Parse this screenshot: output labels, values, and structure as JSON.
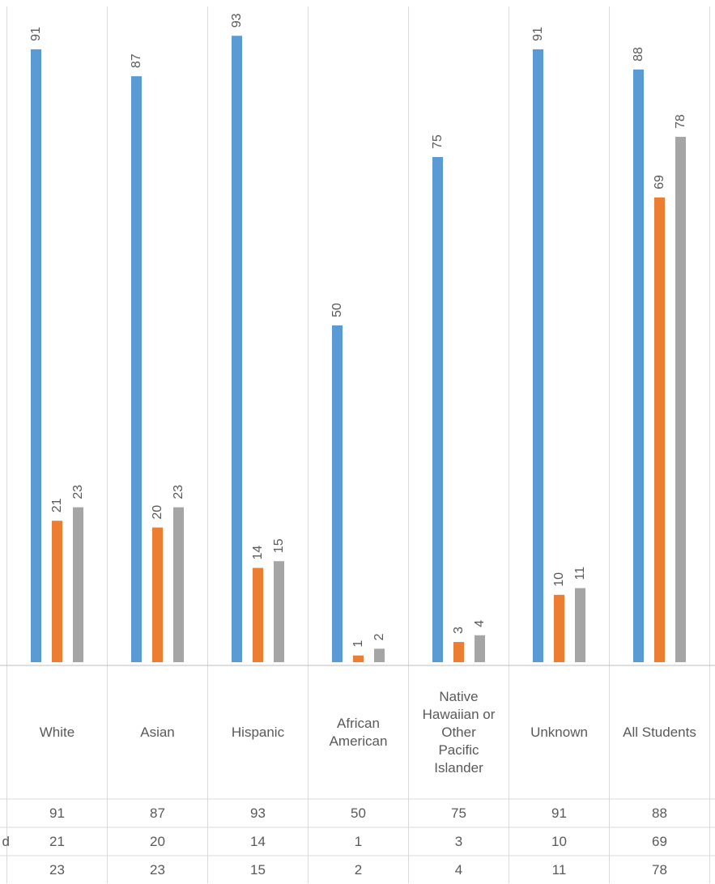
{
  "chart_data": {
    "type": "bar",
    "categories": [
      [
        "White"
      ],
      [
        "Asian"
      ],
      [
        "Hispanic"
      ],
      [
        "African",
        "American"
      ],
      [
        "Native",
        "Hawaiian or",
        "Other",
        "Pacific",
        "Islander"
      ],
      [
        "Unknown"
      ],
      [
        "All Students"
      ]
    ],
    "series": [
      {
        "color": "#5B9BD5",
        "values": [
          91,
          87,
          93,
          50,
          75,
          91,
          88
        ],
        "table_label": ""
      },
      {
        "color": "#ED7D31",
        "values": [
          21,
          20,
          14,
          1,
          3,
          10,
          69
        ],
        "table_label": "d"
      },
      {
        "color": "#A5A5A5",
        "values": [
          23,
          23,
          15,
          2,
          4,
          11,
          78
        ],
        "table_label": ""
      }
    ],
    "ylim": [
      0,
      100
    ],
    "data_labels": true,
    "data_label_rotation": "vertical",
    "data_table": true,
    "grid": false
  }
}
